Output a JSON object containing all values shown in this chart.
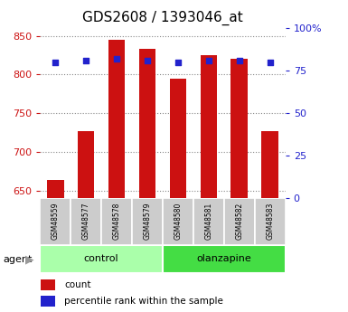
{
  "title": "GDS2608 / 1393046_at",
  "samples": [
    "GSM48559",
    "GSM48577",
    "GSM48578",
    "GSM48579",
    "GSM48580",
    "GSM48581",
    "GSM48582",
    "GSM48583"
  ],
  "count_values": [
    663,
    727,
    845,
    833,
    794,
    825,
    820,
    727
  ],
  "percentile_values": [
    80,
    81,
    82,
    81,
    80,
    81,
    81,
    80
  ],
  "groups": [
    {
      "label": "control",
      "indices": [
        0,
        1,
        2,
        3
      ],
      "color": "#aaffaa"
    },
    {
      "label": "olanzapine",
      "indices": [
        4,
        5,
        6,
        7
      ],
      "color": "#44dd44"
    }
  ],
  "ylim_left": [
    640,
    860
  ],
  "ylim_right": [
    0,
    100
  ],
  "yticks_left": [
    650,
    700,
    750,
    800,
    850
  ],
  "yticks_right": [
    0,
    25,
    50,
    75,
    100
  ],
  "bar_color": "#cc1111",
  "dot_color": "#2222cc",
  "bar_width": 0.55,
  "agent_label": "agent",
  "legend_count": "count",
  "legend_percentile": "percentile rank within the sample",
  "sample_box_color": "#cccccc",
  "title_fontsize": 11,
  "axis_color_left": "#cc1111",
  "axis_color_right": "#2222cc",
  "grid_color": "#888888",
  "percentile_marker_size": 20
}
